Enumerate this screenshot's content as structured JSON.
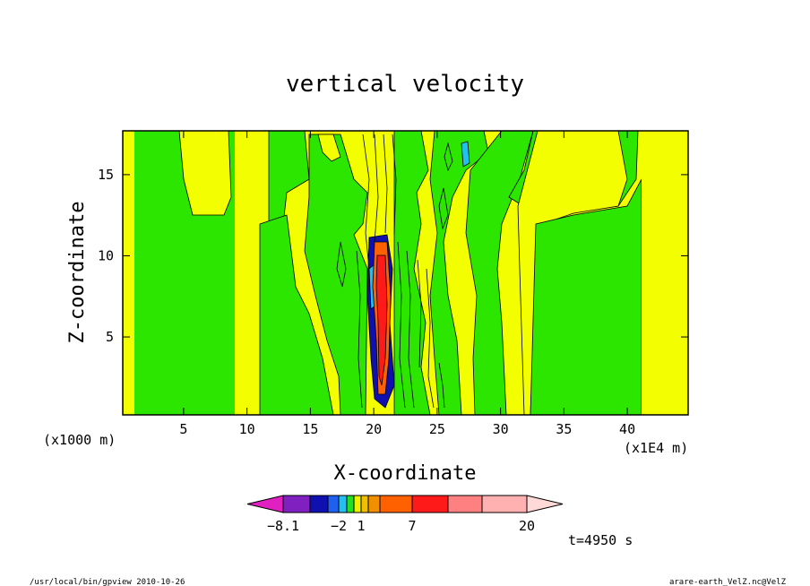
{
  "chart_data": {
    "type": "heatmap",
    "title": "vertical velocity",
    "xlabel": "X-coordinate",
    "ylabel": "Z-coordinate",
    "x_unit_left": "(x1000 m)",
    "x_unit_right": "(x1E4 m)",
    "xlim": [
      0.2,
      44.8
    ],
    "ylim": [
      0.2,
      17.7
    ],
    "x_ticks": [
      5,
      10,
      15,
      20,
      25,
      30,
      35,
      40
    ],
    "y_ticks": [
      5,
      10,
      15
    ],
    "field_description_by_x": [
      {
        "x_from": 0.2,
        "x_to": 0.9,
        "value_class": "small positive",
        "color": "#f3ff00"
      },
      {
        "x_from": 0.9,
        "x_to": 9.0,
        "value_class": "small negative",
        "color": "#2de600"
      },
      {
        "x_from": 9.0,
        "x_to": 18.0,
        "value_class": "mixed",
        "color": "#f3ff00"
      },
      {
        "x_from": 19.6,
        "x_to": 21.4,
        "value_class": "strong updraft core",
        "color": "#ff1a1a"
      },
      {
        "x_from": 23.0,
        "x_to": 29.0,
        "value_class": "mixed",
        "color": "#2de600"
      },
      {
        "x_from": 32.3,
        "x_to": 41.6,
        "value_class": "small negative",
        "color": "#2de600"
      },
      {
        "x_from": 41.6,
        "x_to": 44.8,
        "value_class": "small positive",
        "color": "#f3ff00"
      }
    ],
    "colorbar": {
      "colors": [
        "#e020c0",
        "#8020c0",
        "#1010b0",
        "#2060f0",
        "#20c0f0",
        "#20e020",
        "#f0f000",
        "#f0c000",
        "#f09000",
        "#ff6000",
        "#ff1a1a",
        "#ff8080",
        "#ffb0b0",
        "#ffd8d8"
      ],
      "labels": [
        "−8.1",
        "−2",
        "1",
        "7",
        "20"
      ]
    },
    "time_label": "t=4950 s"
  },
  "footer": {
    "left": "/usr/local/bin/gpview   2010-10-26",
    "right": "arare-earth_VelZ.nc@VelZ"
  }
}
